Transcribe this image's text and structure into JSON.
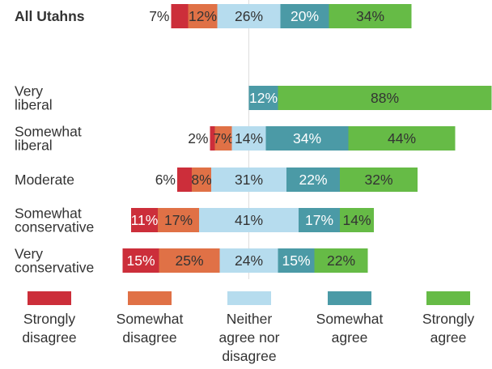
{
  "chart_data": {
    "type": "bar",
    "stacked": true,
    "orientation": "horizontal",
    "grid": false,
    "categories": [
      "All Utahns",
      "Very\nliberal",
      "Somewhat\nliberal",
      "Moderate",
      "Somewhat\nconservative",
      "Very\nconservative"
    ],
    "series": [
      {
        "name": "Strongly disagree",
        "values": [
          7,
          0,
          2,
          6,
          11,
          15
        ]
      },
      {
        "name": "Somewhat disagree",
        "values": [
          12,
          0,
          7,
          8,
          17,
          25
        ]
      },
      {
        "name": "Neither agree nor disagree",
        "values": [
          26,
          0,
          14,
          31,
          41,
          24
        ]
      },
      {
        "name": "Somewhat agree",
        "values": [
          20,
          12,
          34,
          22,
          17,
          15
        ]
      },
      {
        "name": "Strongly agree",
        "values": [
          34,
          88,
          44,
          32,
          14,
          22
        ]
      }
    ],
    "value_suffix": "%",
    "legend_position": "bottom",
    "colors": [
      "#cc2e3a",
      "#e07146",
      "#b6dcee",
      "#4b9aa6",
      "#66bb46"
    ],
    "legend_labels": [
      "Strongly\ndisagree",
      "Somewhat\ndisagree",
      "Neither\nagree nor\ndisagree",
      "Somewhat\nagree",
      "Strongly\nagree"
    ]
  }
}
